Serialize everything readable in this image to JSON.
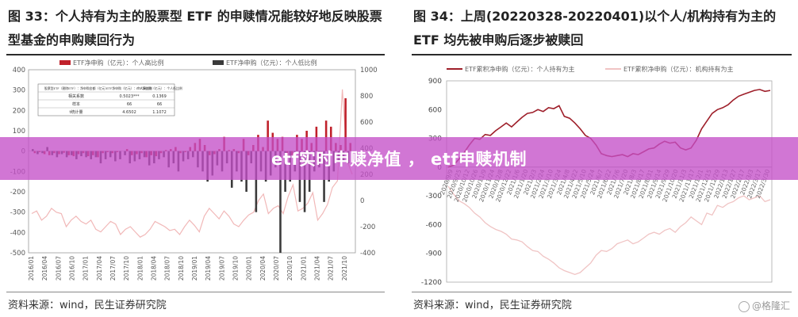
{
  "left": {
    "title": "图 33：个人持有为主的股票型 ETF 的申赎情况能较好地反映股票型基金的申购赎回行为",
    "source": "资料来源：wind，民生证券研究院",
    "chart_data": {
      "type": "bar",
      "legend": [
        "ETF净申购（亿元）：个人高比例",
        "ETF净申购（亿元）：个人低比例"
      ],
      "legend_placement": "top",
      "colors": {
        "high": "#c0212b",
        "low": "#3a3a3a",
        "line": "#f1b8b8"
      },
      "left_axis": {
        "ticks": [
          400,
          300,
          200,
          100,
          0,
          -100,
          -200,
          -300,
          -400,
          -500
        ],
        "range": [
          -500,
          400
        ]
      },
      "right_axis": {
        "ticks": [
          1000,
          800,
          600,
          400,
          200,
          0,
          -200,
          -400
        ],
        "range": [
          -400,
          1000
        ]
      },
      "x_ticks": [
        "2016/01",
        "2016/04",
        "2016/07",
        "2016/10",
        "2017/01",
        "2017/04",
        "2017/07",
        "2017/10",
        "2018/01",
        "2018/04",
        "2018/07",
        "2018/10",
        "2019/01",
        "2019/04",
        "2019/07",
        "2019/10",
        "2020/01",
        "2020/04",
        "2020/07",
        "2020/10",
        "2021/01",
        "2021/04",
        "2021/07",
        "2021/10"
      ],
      "high_values": [
        -10,
        -5,
        -15,
        -20,
        -10,
        -15,
        -8,
        -20,
        -25,
        -15,
        -10,
        -25,
        -20,
        -30,
        -10,
        -5,
        -10,
        -5,
        0,
        10,
        -20,
        -15,
        -10,
        -30,
        -20,
        -25,
        -10,
        5,
        10,
        20,
        -10,
        -5,
        20,
        40,
        60,
        30,
        -20,
        -15,
        10,
        70,
        5,
        10,
        -10,
        60,
        -20,
        30,
        80,
        20,
        150,
        90,
        60,
        70,
        -30,
        -20,
        80,
        60,
        100,
        40,
        120,
        -20,
        150,
        120,
        40,
        30,
        260,
        40
      ],
      "low_values": [
        10,
        -15,
        -10,
        20,
        -20,
        -30,
        -15,
        -30,
        -20,
        -40,
        -25,
        -30,
        -40,
        -30,
        -60,
        -40,
        -30,
        -50,
        -40,
        -20,
        -60,
        -50,
        -40,
        -30,
        -70,
        -60,
        -40,
        -30,
        -80,
        -60,
        -100,
        -50,
        -40,
        -30,
        -80,
        -100,
        -150,
        -120,
        -70,
        -100,
        -60,
        -180,
        -100,
        -150,
        -200,
        -60,
        -300,
        -100,
        -150,
        -120,
        -80,
        -500,
        -200,
        -150,
        -100,
        -250,
        -300,
        -200,
        -100,
        -80,
        -250,
        -150,
        -100,
        -50,
        -50,
        -60
      ],
      "line_values_right_axis": [
        -100,
        -80,
        -150,
        -120,
        -60,
        -90,
        -100,
        -200,
        -150,
        -120,
        -160,
        -180,
        -150,
        -220,
        -240,
        -200,
        -160,
        -180,
        -260,
        -220,
        -200,
        -240,
        -280,
        -260,
        -220,
        -160,
        -180,
        -200,
        -230,
        -220,
        -260,
        -200,
        -150,
        -190,
        -240,
        -120,
        -60,
        -100,
        -140,
        -80,
        -120,
        -180,
        -200,
        -150,
        -110,
        -90,
        0,
        50,
        -100,
        -60,
        -40,
        -100,
        30,
        120,
        -80,
        -60,
        -20,
        60,
        -150,
        -100,
        -30,
        100,
        150,
        850,
        300,
        200
      ],
      "inset_table": {
        "headers": [
          "股票型ETF（剔除ETF）：净申购金额（亿元）",
          "ETF净申购（亿元）：个人高比例",
          "ETF净申购（亿元）：个人低比例"
        ],
        "rows": [
          [
            "相关系数",
            "0.5023***",
            "0.1369"
          ],
          [
            "样本",
            "66",
            "66"
          ],
          [
            "t统计量",
            "4.6502",
            "1.1072"
          ]
        ]
      }
    }
  },
  "right": {
    "title": "图 34：上周(20220328-20220401)以个人/机构持有为主的 ETF 均先被申购后逐步被赎回",
    "source": "资料来源：wind，民生证券研究院",
    "chart_data": {
      "type": "line",
      "legend": [
        "ETF累积净申购（亿元）：个人持有为主",
        "ETF累积净申购（亿元）：机构持有为主"
      ],
      "legend_placement": "top",
      "colors": {
        "individual": "#9e1f2a",
        "institution": "#f0c4c4"
      },
      "y_axis": {
        "ticks": [
          900,
          600,
          300,
          0,
          -300,
          -600,
          -900,
          -1200
        ],
        "range": [
          -1200,
          900
        ]
      },
      "x_ticks": [
        "2020/9/9",
        "2020/9/25",
        "2020/10/12",
        "2020/10/26",
        "2020/11/9",
        "2020/11/24",
        "2020/12/8",
        "2020/12/22",
        "2021/1/6",
        "2021/1/20",
        "2021/2/3",
        "2021/2/24",
        "2021/3/10",
        "2021/3/24",
        "2021/4/8",
        "2021/4/22",
        "2021/5/10",
        "2021/5/24",
        "2021/6/7",
        "2021/6/22",
        "2021/7/6",
        "2021/7/20",
        "2021/8/3",
        "2021/8/17",
        "2021/8/31",
        "2021/9/14",
        "2021/9/29",
        "2021/10/20",
        "2021/11/3",
        "2021/11/17",
        "2021/12/1",
        "2021/12/15",
        "2021/12/29",
        "2022/1/13",
        "2022/1/27",
        "2022/2/17",
        "2022/3/3",
        "2022/3/17",
        "2022/3/30"
      ],
      "individual_values": [
        0,
        20,
        80,
        150,
        230,
        300,
        290,
        340,
        330,
        380,
        420,
        460,
        420,
        470,
        520,
        560,
        570,
        600,
        580,
        620,
        610,
        640,
        530,
        510,
        460,
        400,
        330,
        300,
        230,
        140,
        120,
        110,
        120,
        130,
        110,
        140,
        130,
        160,
        190,
        200,
        240,
        270,
        250,
        260,
        200,
        180,
        200,
        280,
        400,
        480,
        560,
        600,
        620,
        650,
        700,
        740,
        760,
        780,
        800,
        810,
        790,
        800
      ],
      "institution_values": [
        -200,
        -280,
        -350,
        -380,
        -420,
        -480,
        -520,
        -580,
        -620,
        -650,
        -670,
        -700,
        -750,
        -760,
        -780,
        -830,
        -870,
        -880,
        -930,
        -960,
        -1000,
        -1050,
        -1080,
        -1100,
        -1120,
        -1100,
        -1050,
        -1000,
        -920,
        -870,
        -880,
        -850,
        -800,
        -780,
        -760,
        -800,
        -780,
        -740,
        -700,
        -680,
        -700,
        -660,
        -640,
        -680,
        -620,
        -580,
        -520,
        -560,
        -600,
        -480,
        -500,
        -400,
        -420,
        -380,
        -360,
        -320,
        -300,
        -340,
        -320,
        -300,
        -360,
        -340
      ]
    }
  },
  "banner": {
    "text": "etf实时申赎净值 ， etf申赎机制"
  },
  "watermark": {
    "text": "@格隆汇"
  }
}
